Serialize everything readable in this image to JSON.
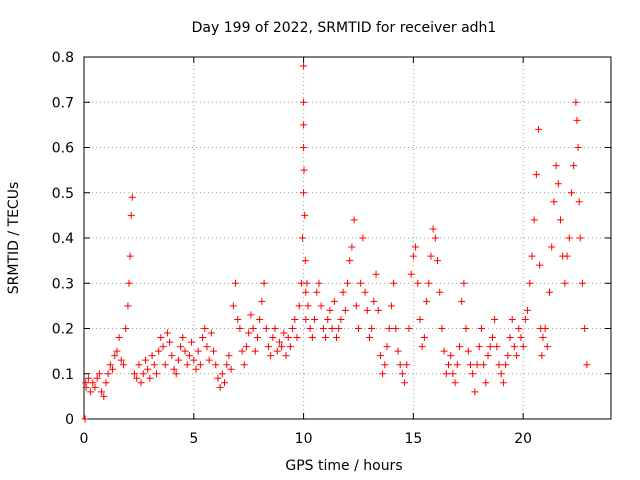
{
  "chart_data": {
    "type": "scatter",
    "title": "Day 199 of 2022, SRMTID for receiver adh1",
    "xlabel": "GPS time / hours",
    "ylabel": "SRMTID / TECUs",
    "xlim": [
      0,
      24
    ],
    "ylim": [
      0,
      0.8
    ],
    "grid": true,
    "marker": "+",
    "marker_color": "#ff0000",
    "x_ticks": [
      0,
      5,
      10,
      15,
      20
    ],
    "x_tick_labels": [
      "0",
      "5",
      "10",
      "15",
      "20"
    ],
    "y_ticks": [
      0,
      0.1,
      0.2,
      0.3,
      0.4,
      0.5,
      0.6,
      0.7,
      0.8
    ],
    "y_tick_labels": [
      "0",
      "0.1",
      "0.2",
      "0.3",
      "0.4",
      "0.5",
      "0.6",
      "0.7",
      "0.8"
    ],
    "series": [
      {
        "name": "SRMTID",
        "x": [
          0.05,
          0.08,
          0.1,
          0.2,
          0.3,
          0.4,
          0.5,
          0.6,
          0.7,
          0.8,
          0.9,
          1.0,
          1.1,
          1.2,
          1.3,
          1.4,
          1.5,
          1.6,
          1.7,
          1.8,
          1.9,
          2.0,
          2.05,
          2.1,
          2.15,
          2.2,
          2.3,
          2.4,
          2.5,
          2.6,
          2.7,
          2.8,
          2.9,
          3.0,
          3.1,
          3.2,
          3.3,
          3.4,
          3.5,
          3.6,
          3.7,
          3.8,
          3.9,
          4.0,
          4.1,
          4.2,
          4.3,
          4.4,
          4.5,
          4.6,
          4.7,
          4.8,
          4.9,
          5.0,
          5.1,
          5.2,
          5.3,
          5.4,
          5.5,
          5.6,
          5.7,
          5.8,
          5.9,
          6.0,
          6.1,
          6.2,
          6.3,
          6.4,
          6.5,
          6.6,
          6.7,
          6.8,
          6.9,
          7.0,
          7.1,
          7.2,
          7.3,
          7.4,
          7.5,
          7.6,
          7.7,
          7.8,
          7.9,
          8.0,
          8.1,
          8.2,
          8.3,
          8.4,
          8.5,
          8.6,
          8.7,
          8.8,
          8.9,
          9.0,
          9.1,
          9.2,
          9.3,
          9.4,
          9.5,
          9.6,
          9.7,
          9.8,
          9.9,
          9.95,
          10.0,
          10.0,
          10.0,
          10.0,
          10.0,
          10.02,
          10.05,
          10.08,
          10.1,
          10.1,
          10.15,
          10.2,
          10.3,
          10.4,
          10.5,
          10.6,
          10.7,
          10.8,
          10.9,
          11.0,
          11.1,
          11.2,
          11.3,
          11.4,
          11.5,
          11.6,
          11.7,
          11.8,
          11.9,
          12.0,
          12.1,
          12.2,
          12.3,
          12.4,
          12.5,
          12.6,
          12.7,
          12.8,
          12.9,
          13.0,
          13.1,
          13.2,
          13.3,
          13.4,
          13.5,
          13.6,
          13.7,
          13.8,
          13.9,
          14.0,
          14.1,
          14.2,
          14.3,
          14.4,
          14.5,
          14.6,
          14.7,
          14.8,
          14.9,
          15.0,
          15.1,
          15.2,
          15.3,
          15.4,
          15.5,
          15.6,
          15.7,
          15.8,
          15.9,
          16.0,
          16.1,
          16.2,
          16.3,
          16.4,
          16.5,
          16.6,
          16.7,
          16.8,
          16.9,
          17.0,
          17.1,
          17.2,
          17.3,
          17.4,
          17.5,
          17.6,
          17.7,
          17.8,
          17.9,
          18.0,
          18.1,
          18.2,
          18.3,
          18.4,
          18.5,
          18.6,
          18.7,
          18.8,
          18.9,
          19.0,
          19.1,
          19.2,
          19.3,
          19.4,
          19.5,
          19.6,
          19.7,
          19.8,
          19.9,
          20.0,
          20.1,
          20.2,
          20.3,
          20.4,
          20.5,
          20.6,
          20.7,
          20.75,
          20.8,
          20.85,
          20.9,
          21.0,
          21.1,
          21.2,
          21.3,
          21.4,
          21.5,
          21.6,
          21.7,
          21.8,
          21.9,
          22.0,
          22.1,
          22.2,
          22.3,
          22.4,
          22.45,
          22.5,
          22.55,
          22.6,
          22.7,
          22.8,
          22.9
        ],
        "y": [
          0.0,
          0.08,
          0.07,
          0.09,
          0.06,
          0.08,
          0.07,
          0.09,
          0.1,
          0.06,
          0.05,
          0.08,
          0.1,
          0.12,
          0.11,
          0.14,
          0.15,
          0.18,
          0.13,
          0.12,
          0.2,
          0.25,
          0.3,
          0.36,
          0.45,
          0.49,
          0.1,
          0.09,
          0.12,
          0.08,
          0.1,
          0.13,
          0.11,
          0.09,
          0.14,
          0.12,
          0.1,
          0.15,
          0.18,
          0.16,
          0.12,
          0.19,
          0.17,
          0.14,
          0.11,
          0.1,
          0.13,
          0.16,
          0.18,
          0.15,
          0.12,
          0.14,
          0.17,
          0.13,
          0.11,
          0.15,
          0.12,
          0.18,
          0.2,
          0.16,
          0.13,
          0.19,
          0.15,
          0.12,
          0.09,
          0.07,
          0.1,
          0.08,
          0.12,
          0.14,
          0.11,
          0.25,
          0.3,
          0.22,
          0.2,
          0.15,
          0.12,
          0.16,
          0.19,
          0.23,
          0.2,
          0.15,
          0.18,
          0.22,
          0.26,
          0.3,
          0.2,
          0.16,
          0.14,
          0.18,
          0.2,
          0.15,
          0.17,
          0.16,
          0.19,
          0.14,
          0.18,
          0.16,
          0.2,
          0.22,
          0.18,
          0.25,
          0.3,
          0.4,
          0.5,
          0.6,
          0.7,
          0.78,
          0.65,
          0.55,
          0.45,
          0.35,
          0.28,
          0.22,
          0.3,
          0.25,
          0.2,
          0.18,
          0.22,
          0.28,
          0.3,
          0.25,
          0.2,
          0.18,
          0.22,
          0.24,
          0.2,
          0.26,
          0.18,
          0.2,
          0.22,
          0.28,
          0.24,
          0.3,
          0.35,
          0.38,
          0.44,
          0.25,
          0.2,
          0.3,
          0.4,
          0.28,
          0.24,
          0.18,
          0.2,
          0.26,
          0.32,
          0.24,
          0.14,
          0.1,
          0.12,
          0.16,
          0.2,
          0.25,
          0.3,
          0.2,
          0.15,
          0.12,
          0.1,
          0.08,
          0.12,
          0.2,
          0.32,
          0.36,
          0.38,
          0.3,
          0.22,
          0.16,
          0.18,
          0.26,
          0.3,
          0.36,
          0.42,
          0.4,
          0.35,
          0.28,
          0.2,
          0.15,
          0.1,
          0.12,
          0.14,
          0.1,
          0.08,
          0.12,
          0.16,
          0.26,
          0.3,
          0.2,
          0.15,
          0.12,
          0.1,
          0.06,
          0.12,
          0.16,
          0.2,
          0.12,
          0.08,
          0.14,
          0.16,
          0.18,
          0.22,
          0.16,
          0.12,
          0.1,
          0.08,
          0.12,
          0.14,
          0.18,
          0.22,
          0.16,
          0.14,
          0.2,
          0.18,
          0.16,
          0.22,
          0.24,
          0.3,
          0.36,
          0.44,
          0.54,
          0.64,
          0.34,
          0.2,
          0.14,
          0.18,
          0.2,
          0.16,
          0.28,
          0.38,
          0.48,
          0.56,
          0.52,
          0.44,
          0.36,
          0.3,
          0.36,
          0.4,
          0.5,
          0.56,
          0.7,
          0.66,
          0.6,
          0.48,
          0.4,
          0.3,
          0.2,
          0.12
        ]
      }
    ]
  }
}
